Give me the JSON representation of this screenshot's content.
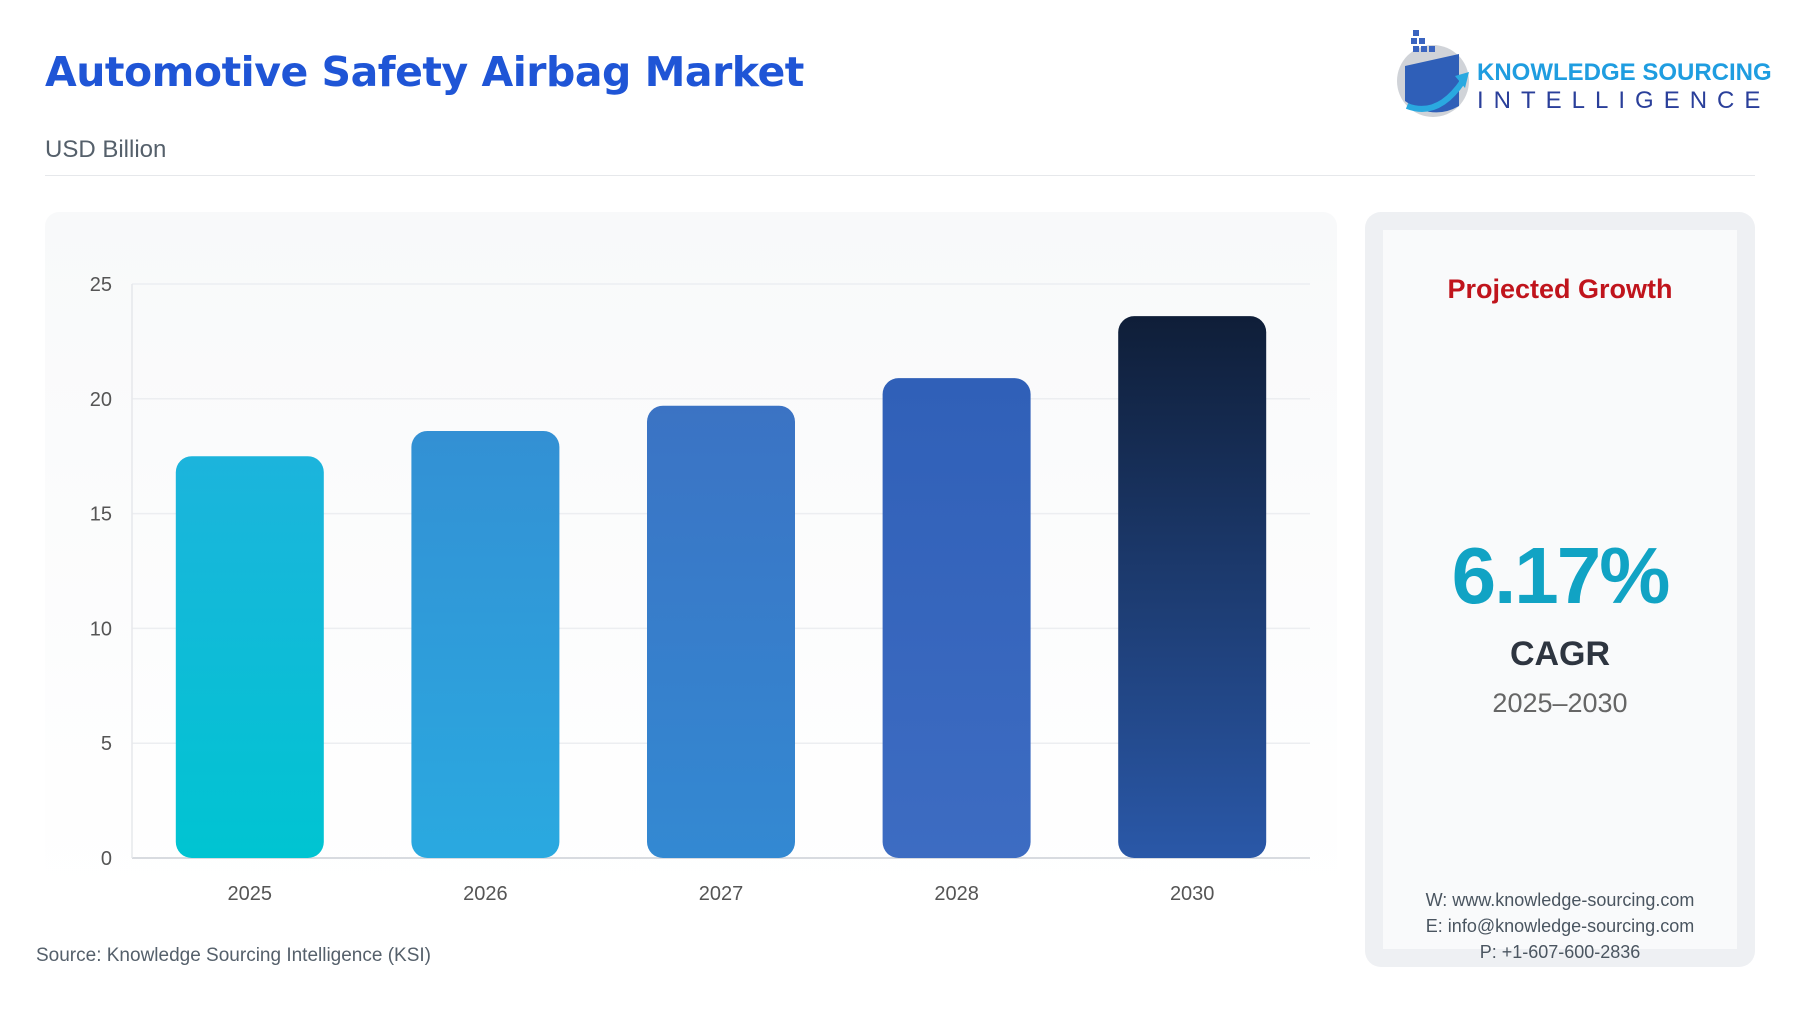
{
  "header": {
    "title": "Automotive Safety Airbag Market",
    "subtitle": "USD Billion"
  },
  "logo": {
    "line1": "KNOWLEDGE SOURCING",
    "line2": "INTELLIGENCE"
  },
  "chart_data": {
    "type": "bar",
    "categories": [
      "2025",
      "2026",
      "2027",
      "2028",
      "2030"
    ],
    "values": [
      17.5,
      18.6,
      19.7,
      20.9,
      23.6
    ],
    "ylim": [
      0,
      25
    ],
    "yticks": [
      0,
      5,
      10,
      15,
      20,
      25
    ],
    "grid": true,
    "xlabel": "",
    "ylabel": "",
    "colors": [
      [
        "#00c4d2",
        "#1cb4dc"
      ],
      [
        "#2aa9e0",
        "#3390d4"
      ],
      [
        "#3389d2",
        "#3b73c4"
      ],
      [
        "#3d6cc2",
        "#3060b8"
      ],
      [
        "#2a58a8",
        "#0f1e38"
      ]
    ]
  },
  "source": "Source: Knowledge Sourcing Intelligence (KSI)",
  "side": {
    "heading": "Projected Growth",
    "value": "6.17%",
    "label": "CAGR",
    "period": "2025–2030",
    "contacts": [
      "W: www.knowledge-sourcing.com",
      "E: info@knowledge-sourcing.com",
      "P: +1-607-600-2836"
    ]
  }
}
